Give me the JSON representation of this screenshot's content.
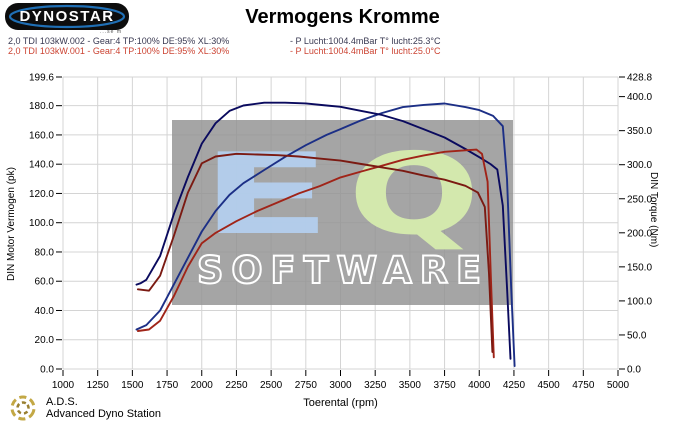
{
  "header": {
    "logo_text": "DYNOSTAR",
    "logo_subtext": "...se m",
    "title": "Vermogens Kromme"
  },
  "legend": {
    "entries": [
      {
        "color": "#3a3a52",
        "left": "2,0 TDI 103kW.002 - Gear:4 TP:100% DE:95% XL:30%",
        "right": "- P Lucht:1004.4mBar T° lucht:25.3°C"
      },
      {
        "color": "#cc4433",
        "left": "2,0 TDI 103kW.001 - Gear:4 TP:100% DE:95% XL:30%",
        "right": "- P Lucht:1004.4mBar T° lucht:25.0°C"
      }
    ]
  },
  "watermark": {
    "letter_e": "E",
    "letter_q": "Q",
    "subtitle": "SOFTWARE",
    "box_color": "#949494",
    "e_color": "#b4cfee",
    "q_color": "#d6ecae"
  },
  "footer": {
    "abbr": "A.D.S.",
    "name": "Advanced Dyno Station"
  },
  "chart_data": {
    "type": "line",
    "title": "Vermogens Kromme",
    "xlabel": "Toerental (rpm)",
    "ylabel_left": "DIN Motor Vermogen (pk)",
    "ylabel_right": "DIN Torque (Nm)",
    "grid": true,
    "x_range": [
      1000,
      5000
    ],
    "y_left_range": [
      0,
      199.6
    ],
    "y_right_range": [
      0,
      428.8
    ],
    "x_ticks": [
      "1000",
      "1250",
      "1500",
      "1750",
      "2000",
      "2250",
      "2500",
      "2750",
      "3000",
      "3250",
      "3500",
      "3750",
      "4000",
      "4250",
      "4500",
      "4750",
      "5000"
    ],
    "y_left_ticks": [
      "199.6",
      "180.0",
      "160.0",
      "140.0",
      "120.0",
      "100.0",
      "80.0",
      "60.0",
      "40.0",
      "20.0",
      "0.0"
    ],
    "y_right_ticks": [
      "428.8",
      "400.0",
      "350.0",
      "300.0",
      "250.0",
      "200.0",
      "150.0",
      "100.0",
      "50.0",
      "0.0"
    ],
    "grid_color": "#d4d4d4",
    "series": [
      {
        "name": "2,0 TDI 103kW.002 - DIN Motor Vermogen (pk)",
        "axis": "left",
        "color": "#1c2f86",
        "peak": "181.5 pk @ 3750 rpm",
        "points": [
          [
            1530,
            27
          ],
          [
            1600,
            30
          ],
          [
            1700,
            40
          ],
          [
            1800,
            58
          ],
          [
            1900,
            76
          ],
          [
            2000,
            94
          ],
          [
            2100,
            108
          ],
          [
            2200,
            119
          ],
          [
            2300,
            127
          ],
          [
            2450,
            136
          ],
          [
            2600,
            145
          ],
          [
            2750,
            153
          ],
          [
            2900,
            160
          ],
          [
            3000,
            164
          ],
          [
            3150,
            170
          ],
          [
            3300,
            175
          ],
          [
            3450,
            179
          ],
          [
            3600,
            180.5
          ],
          [
            3750,
            181.5
          ],
          [
            3900,
            179
          ],
          [
            4000,
            177
          ],
          [
            4100,
            173
          ],
          [
            4170,
            166
          ],
          [
            4200,
            130
          ],
          [
            4230,
            55
          ],
          [
            4255,
            2
          ]
        ]
      },
      {
        "name": "2,0 TDI 103kW.002 - DIN Torque (Nm)",
        "axis": "right",
        "color": "#0a0a5e",
        "peak": "391 Nm @ 2500 rpm",
        "points": [
          [
            1530,
            124
          ],
          [
            1560,
            126
          ],
          [
            1600,
            131
          ],
          [
            1700,
            166
          ],
          [
            1800,
            228
          ],
          [
            1900,
            282
          ],
          [
            2000,
            331
          ],
          [
            2100,
            361
          ],
          [
            2200,
            379
          ],
          [
            2300,
            387
          ],
          [
            2450,
            391
          ],
          [
            2600,
            391
          ],
          [
            2750,
            390
          ],
          [
            2900,
            387
          ],
          [
            3000,
            385
          ],
          [
            3150,
            379
          ],
          [
            3300,
            373
          ],
          [
            3450,
            364
          ],
          [
            3600,
            352
          ],
          [
            3750,
            340
          ],
          [
            3900,
            323
          ],
          [
            4000,
            311
          ],
          [
            4080,
            301
          ],
          [
            4130,
            293
          ],
          [
            4170,
            240
          ],
          [
            4200,
            120
          ],
          [
            4225,
            15
          ]
        ]
      },
      {
        "name": "2,0 TDI 103kW.001 - DIN Motor Vermogen (pk)",
        "axis": "left",
        "color": "#a02418",
        "peak": "150 pk @ 3980 rpm",
        "points": [
          [
            1540,
            26
          ],
          [
            1620,
            27
          ],
          [
            1700,
            33
          ],
          [
            1800,
            50
          ],
          [
            1900,
            70
          ],
          [
            2000,
            86
          ],
          [
            2100,
            93
          ],
          [
            2250,
            101
          ],
          [
            2400,
            108
          ],
          [
            2550,
            114
          ],
          [
            2700,
            120
          ],
          [
            2850,
            125
          ],
          [
            3000,
            131
          ],
          [
            3150,
            135
          ],
          [
            3300,
            139
          ],
          [
            3450,
            143
          ],
          [
            3600,
            146
          ],
          [
            3750,
            148.5
          ],
          [
            3900,
            149.5
          ],
          [
            3980,
            150
          ],
          [
            4020,
            147
          ],
          [
            4060,
            128
          ],
          [
            4085,
            60
          ],
          [
            4105,
            8
          ]
        ]
      },
      {
        "name": "2,0 TDI 103kW.001 - DIN Torque (Nm)",
        "axis": "right",
        "color": "#7b1a12",
        "peak": "316 Nm @ 2250 rpm",
        "points": [
          [
            1540,
            117
          ],
          [
            1620,
            115
          ],
          [
            1700,
            137
          ],
          [
            1800,
            196
          ],
          [
            1900,
            259
          ],
          [
            2000,
            302
          ],
          [
            2100,
            312
          ],
          [
            2250,
            316
          ],
          [
            2400,
            315
          ],
          [
            2550,
            314
          ],
          [
            2700,
            312
          ],
          [
            2850,
            309
          ],
          [
            3000,
            306
          ],
          [
            3150,
            301
          ],
          [
            3300,
            296
          ],
          [
            3450,
            291
          ],
          [
            3600,
            284
          ],
          [
            3750,
            278
          ],
          [
            3900,
            269
          ],
          [
            3990,
            259
          ],
          [
            4040,
            238
          ],
          [
            4070,
            140
          ],
          [
            4095,
            25
          ]
        ]
      }
    ]
  }
}
